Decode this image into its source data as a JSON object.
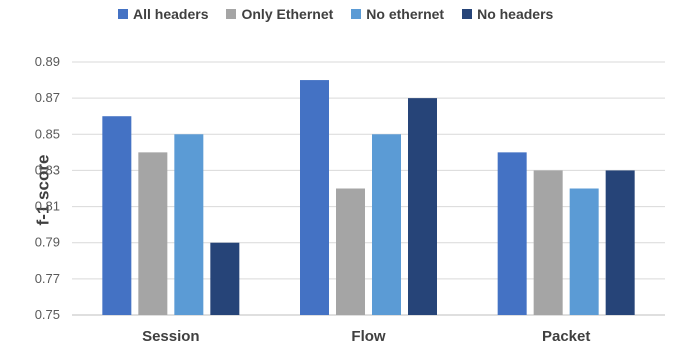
{
  "chart_data": {
    "type": "bar",
    "title": "",
    "xlabel": "",
    "ylabel": "f-1 score",
    "categories": [
      "Session",
      "Flow",
      "Packet"
    ],
    "series": [
      {
        "name": "All headers",
        "color": "#4472C4",
        "values": [
          0.86,
          0.88,
          0.84
        ]
      },
      {
        "name": "Only Ethernet",
        "color": "#A5A5A5",
        "values": [
          0.84,
          0.82,
          0.83
        ]
      },
      {
        "name": "No ethernet",
        "color": "#5B9BD5",
        "values": [
          0.85,
          0.85,
          0.82
        ]
      },
      {
        "name": "No headers",
        "color": "#264478",
        "values": [
          0.79,
          0.87,
          0.83
        ]
      }
    ],
    "ylim": [
      0.75,
      0.89
    ],
    "yticks": [
      "0.75",
      "0.77",
      "0.79",
      "0.81",
      "0.83",
      "0.85",
      "0.87",
      "0.89"
    ],
    "grid": true,
    "legend": "top"
  }
}
